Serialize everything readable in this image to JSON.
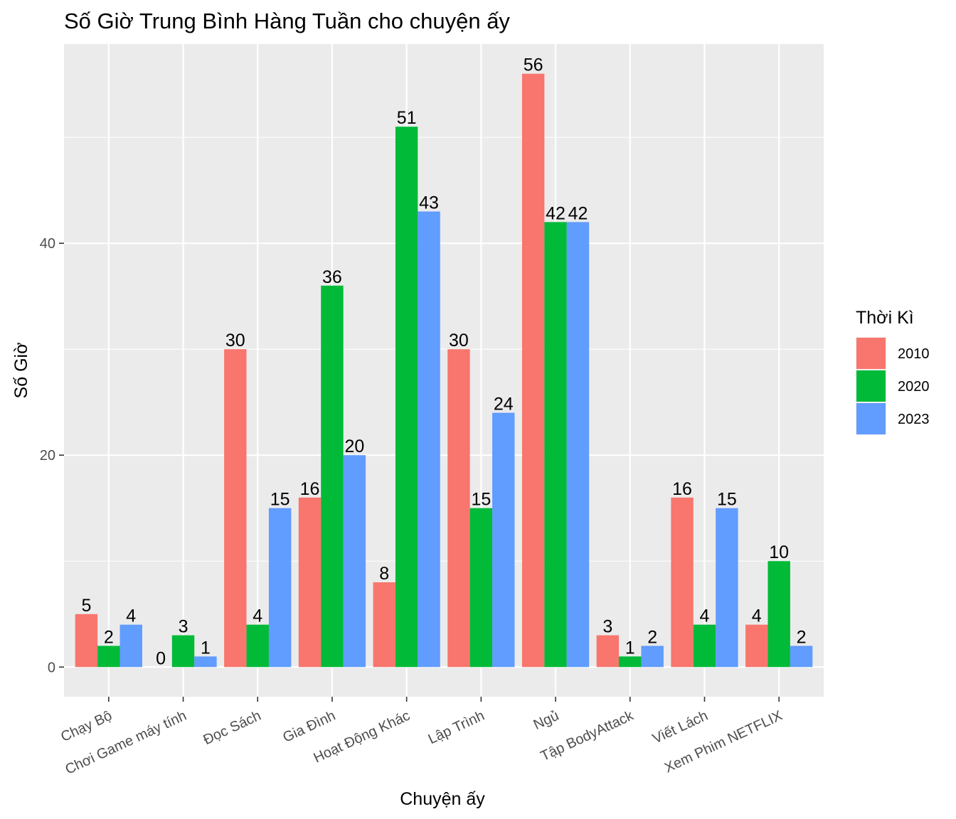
{
  "chart_data": {
    "type": "bar",
    "title": "Số Giờ Trung Bình Hàng Tuần cho chuyện ấy",
    "xlabel": "Chuyện ấy",
    "ylabel": "Số Giờ",
    "ylim": [
      -2.8,
      58.8
    ],
    "yticks": [
      0,
      20,
      40
    ],
    "grid": true,
    "legend_title": "Thời Kì",
    "legend_position": "right",
    "categories": [
      "Chạy Bộ",
      "Chơi Game máy tính",
      "Đọc Sách",
      "Gia Đình",
      "Hoạt Động Khác",
      "Lập Trình",
      "Ngủ",
      "Tập BodyAttack",
      "Viết Lách",
      "Xem Phim NETFLIX"
    ],
    "series": [
      {
        "name": "2010",
        "color": "#F8766D",
        "values": [
          5,
          0,
          30,
          16,
          8,
          30,
          56,
          3,
          16,
          4
        ]
      },
      {
        "name": "2020",
        "color": "#00BA38",
        "values": [
          2,
          3,
          4,
          36,
          51,
          15,
          42,
          1,
          4,
          10
        ]
      },
      {
        "name": "2023",
        "color": "#619CFF",
        "values": [
          4,
          1,
          15,
          20,
          43,
          24,
          42,
          2,
          15,
          2
        ]
      }
    ]
  }
}
